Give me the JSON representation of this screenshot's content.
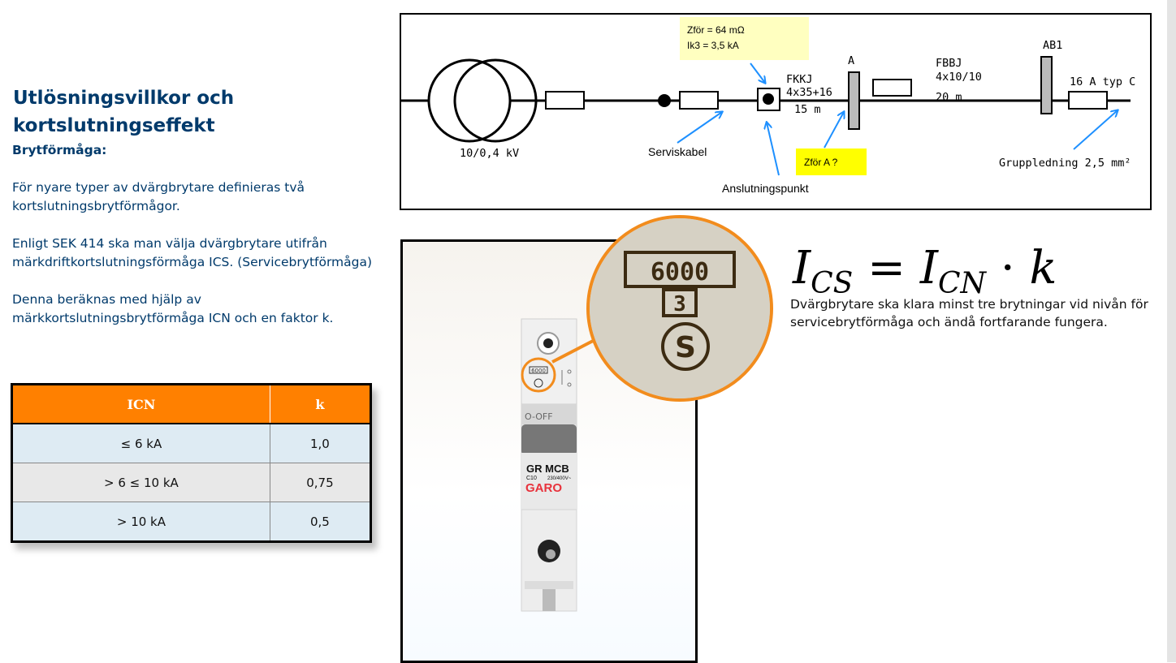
{
  "left": {
    "title": "Utlösningsvillkor och kortslutningseffekt",
    "subheading": "Brytförmåga:",
    "paragraphs": [
      "För nyare typer av dvärgbrytare definieras två kortslutningsbrytförmågor.",
      "Enligt SEK 414 ska man välja dvärgbrytare utifrån märkdriftkortslutningsförmåga ICS. (Servicebrytförmåga)",
      "Denna beräknas med hjälp av märkkortslutningsbrytförmåga ICN och en faktor k."
    ]
  },
  "table": {
    "headers": [
      "ICN",
      "k"
    ],
    "rows": [
      [
        "≤ 6 kA",
        "1,0"
      ],
      [
        "> 6 ≤ 10 kA",
        "0,75"
      ],
      [
        "> 10 kA",
        "0,5"
      ]
    ]
  },
  "diagram": {
    "note_line1": "Zför = 64 mΩ",
    "note_line2": "Ik3 = 3,5 kA",
    "transformer": "10/0,4 kV",
    "serviskabel": "Serviskabel",
    "anslutningspunkt": "Anslutningspunkt",
    "fkkj_1": "FKKJ",
    "fkkj_2": "4x35+16",
    "fkkj_3": "15 m",
    "point_a": "A",
    "zfor_a": "Zför A ?",
    "fbbj_1": "FBBJ",
    "fbbj_2": "4x10/10",
    "fbbj_3": "20 m",
    "ab1": "AB1",
    "fuse_16a": "16 A typ C",
    "gruppledning": "Gruppledning 2,5 mm²"
  },
  "photo": {
    "breaker_model": "GR MCB",
    "breaker_rating": "C10",
    "breaker_voltage": "230/400V~",
    "brand": "GARO",
    "marking_value": "6000",
    "marking_class": "3",
    "marking_symbol": "S",
    "switch_label": "O-OFF"
  },
  "formula": {
    "lhs": "I",
    "lhs_sub": "CS",
    "eq": "=",
    "rhs": "I",
    "rhs_sub": "CN",
    "dot": "·",
    "k": "k"
  },
  "note": "Dvärgbrytare ska klara minst tre brytningar vid nivån för servicebrytförmåga och ändå fortfarande fungera.",
  "colors": {
    "title_blue": "#003a6b",
    "header_orange": "#ff8000",
    "magnifier_orange": "#f28c1d",
    "note_yellow": "#ffffc0",
    "zfor_yellow": "#ffff00",
    "arrow_blue": "#1e90ff"
  }
}
